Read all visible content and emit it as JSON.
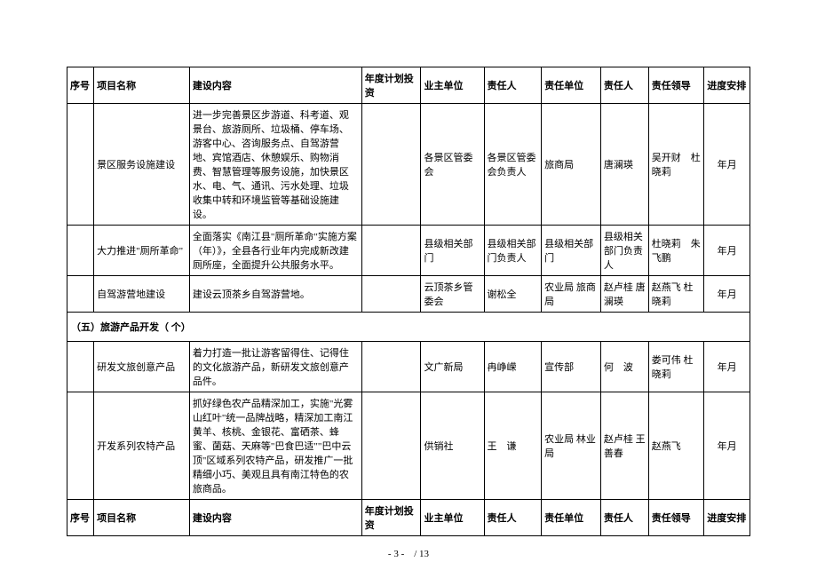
{
  "watermark": "",
  "header": {
    "seq": "序号",
    "name": "项目名称",
    "content": "建设内容",
    "invest": "年度计划投资",
    "owner": "业主单位",
    "resp1": "责任人",
    "unit": "责任单位",
    "resp2": "责任人",
    "leader": "责任领导",
    "schedule": "进度安排"
  },
  "rows": [
    {
      "seq": "",
      "name": "景区服务设施建设",
      "content": "进一步完善景区步游道、科考道、观景台、旅游厕所、垃圾桶、停车场、游客中心、咨询服务点、自驾游营地、宾馆酒店、休憩娱乐、购物消费、智慧管理等服务设施，加快景区水、电、气、通讯、污水处理、垃圾收集中转和环境监管等基础设施建设。",
      "invest": "",
      "owner": "各景区管委会",
      "resp1": "各景区管委会负责人",
      "unit": "旅商局",
      "resp2": "唐澜瑛",
      "leader": "吴开财　杜晓莉",
      "schedule": "年月"
    },
    {
      "seq": "",
      "name": "大力推进\"厕所革命\"",
      "content": "全面落实《南江县\"厕所革命\"实施方案（年）》，全县各行业年内完成新改建厕所座，全面提升公共服务水平。",
      "invest": "",
      "owner": "县级相关部门",
      "resp1": "县级相关部门负责人",
      "unit": "县级相关部门",
      "resp2": "县级相关部门负责人",
      "leader": "杜晓莉　朱飞鹏",
      "schedule": "年月"
    },
    {
      "seq": "",
      "name": "自驾游营地建设",
      "content": "建设云顶茶乡自驾游营地。",
      "invest": "",
      "owner": "云顶茶乡管委会",
      "resp1": "谢松全",
      "unit": "农业局 旅商局",
      "resp2": "赵卢桂 唐澜瑛",
      "leader": "赵燕飞 杜晓莉",
      "schedule": "年月"
    }
  ],
  "section": "（五）旅游产品开发（ 个）",
  "rows2": [
    {
      "seq": "",
      "name": "研发文旅创意产品",
      "content": "着力打造一批让游客留得住、记得住的文化旅游产品，新研发文旅创意产品件。",
      "invest": "",
      "owner": "文广新局",
      "resp1": "冉峥嵘",
      "unit": "宣传部",
      "resp2": "何　波",
      "leader": "娄可伟 杜晓莉",
      "schedule": "年月"
    },
    {
      "seq": "",
      "name": "开发系列农特产品",
      "content": "抓好绿色农产品精深加工，实施\"光雾山红叶\"统一品牌战略，精深加工南江黄羊、核桃、金银花、富硒茶、蜂蜜、菌菇、天麻等\"巴食巴适\"\"巴中云顶\"区域系列农特产品，研发推广一批精细小巧、美观且具有南江特色的农旅商品。",
      "invest": "",
      "owner": "供销社",
      "resp1": "王　谦",
      "unit": "农业局 林业局",
      "resp2": "赵卢桂 王善春",
      "leader": "赵燕飞",
      "schedule": "年月"
    }
  ],
  "pagenum": "- 3 -　/ 13"
}
